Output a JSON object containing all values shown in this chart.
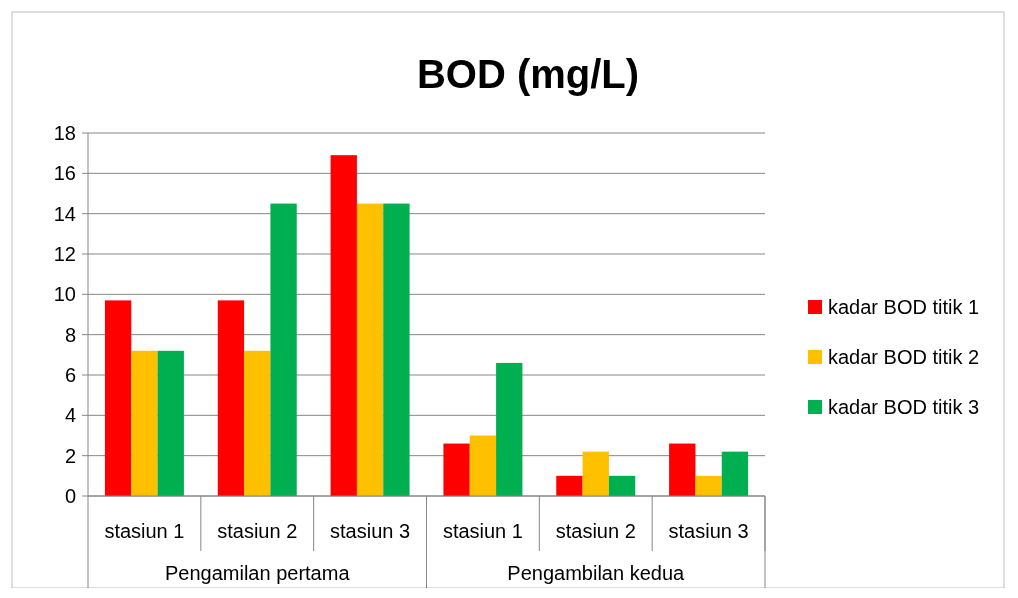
{
  "chart_data": {
    "type": "bar",
    "title": "BOD (mg/L)",
    "categories": [
      "stasiun 1",
      "stasiun 2",
      "stasiun 3",
      "stasiun 1",
      "stasiun 2",
      "stasiun 3"
    ],
    "annotations": [
      "Pengamilan pertama",
      "Pengambilan kedua"
    ],
    "series": [
      {
        "name": "kadar BOD titik 1",
        "color": "#ff0000",
        "values": [
          9.7,
          9.7,
          16.9,
          2.6,
          1.0,
          2.6
        ]
      },
      {
        "name": "kadar BOD titik 2",
        "color": "#ffc000",
        "values": [
          7.2,
          7.2,
          14.5,
          3.0,
          2.2,
          1.0
        ]
      },
      {
        "name": "kadar BOD titik 3",
        "color": "#00b050",
        "values": [
          7.2,
          14.5,
          14.5,
          6.6,
          1.0,
          2.2
        ]
      }
    ],
    "ylim": [
      0,
      18
    ],
    "yticks": [
      0,
      2,
      4,
      6,
      8,
      10,
      12,
      14,
      16,
      18
    ],
    "grid": "y",
    "legend": "right"
  }
}
